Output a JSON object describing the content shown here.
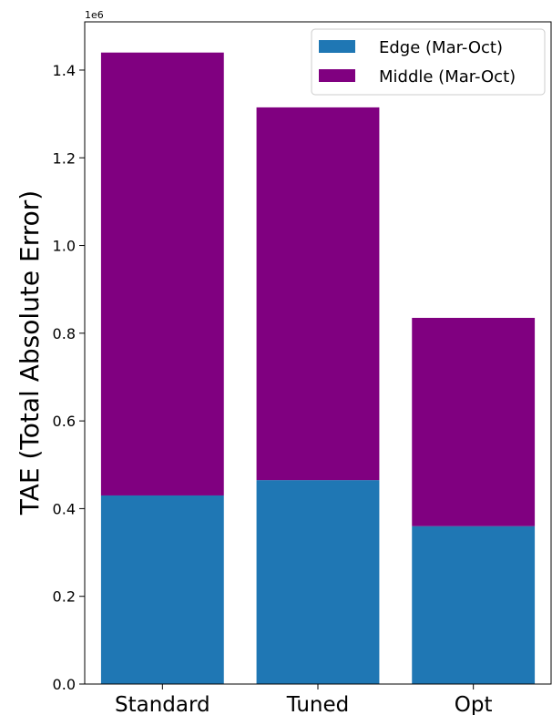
{
  "chart_data": {
    "type": "bar",
    "stacked": true,
    "categories": [
      "Standard",
      "Tuned",
      "Opt"
    ],
    "series": [
      {
        "name": "Edge (Mar-Oct)",
        "color": "#1f77b4",
        "values": [
          430000,
          465000,
          360000
        ]
      },
      {
        "name": "Middle (Mar-Oct)",
        "color": "#800080",
        "values": [
          1010000,
          850000,
          475000
        ]
      }
    ],
    "title": "",
    "xlabel": "",
    "ylabel": "TAE (Total Absolute Error)",
    "y_offset_label": "1e6",
    "ylim": [
      0,
      1510000
    ],
    "yticks": [
      0,
      200000,
      400000,
      600000,
      800000,
      1000000,
      1200000,
      1400000
    ],
    "ytick_labels": [
      "0.0",
      "0.2",
      "0.4",
      "0.6",
      "0.8",
      "1.0",
      "1.2",
      "1.4"
    ],
    "legend_position": "top-right",
    "grid": false
  }
}
